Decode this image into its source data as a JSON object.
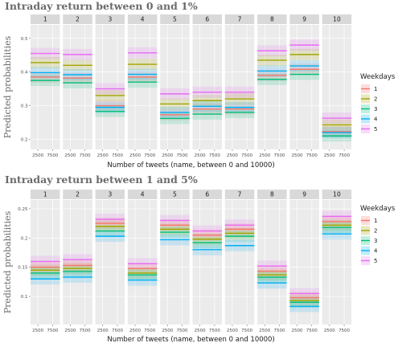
{
  "legend": {
    "title": "Weekdays",
    "entries": [
      "1",
      "2",
      "3",
      "4",
      "5"
    ],
    "colors": [
      "#F8766D",
      "#A3A500",
      "#00BF7D",
      "#00B0F6",
      "#E76BF3"
    ],
    "placement": "right"
  },
  "chart_data": [
    {
      "type": "line",
      "title": "Intraday return between 0 and 1%",
      "xlabel": "Number of tweets (name, between 0 and 10000)",
      "ylabel": "Predicted probabilities",
      "x_ticks": [
        2500,
        7500
      ],
      "xlim": [
        0,
        10000
      ],
      "y_ticks": [
        0.2,
        0.3,
        0.4,
        0.5
      ],
      "ylim": [
        0.17,
        0.54
      ],
      "grid": true,
      "panels": [
        "1",
        "2",
        "3",
        "4",
        "5",
        "6",
        "7",
        "8",
        "9",
        "10"
      ],
      "series": [
        {
          "name": "1",
          "values": [
            0.385,
            0.382,
            0.3,
            0.385,
            0.273,
            0.29,
            0.29,
            0.39,
            0.408,
            0.223
          ]
        },
        {
          "name": "2",
          "values": [
            0.428,
            0.42,
            0.33,
            0.423,
            0.305,
            0.315,
            0.32,
            0.435,
            0.452,
            0.243
          ]
        },
        {
          "name": "3",
          "values": [
            0.375,
            0.368,
            0.283,
            0.37,
            0.262,
            0.275,
            0.28,
            0.378,
            0.393,
            0.21
          ]
        },
        {
          "name": "4",
          "values": [
            0.398,
            0.392,
            0.295,
            0.393,
            0.28,
            0.298,
            0.295,
            0.403,
            0.418,
            0.22
          ]
        },
        {
          "name": "5",
          "values": [
            0.455,
            0.452,
            0.35,
            0.457,
            0.335,
            0.34,
            0.34,
            0.463,
            0.48,
            0.263
          ]
        }
      ]
    },
    {
      "type": "line",
      "title": "Intraday return between 1 and 5%",
      "xlabel": "Number of tweets (name, between 0 and 10000)",
      "ylabel": "Predicted probabilities",
      "x_ticks": [
        2500,
        7500
      ],
      "xlim": [
        0,
        10000
      ],
      "y_ticks": [
        0.1,
        0.15,
        0.2,
        0.25
      ],
      "ylim": [
        0.052,
        0.265
      ],
      "grid": true,
      "panels": [
        "1",
        "2",
        "3",
        "4",
        "5",
        "6",
        "7",
        "8",
        "9",
        "10"
      ],
      "series": [
        {
          "name": "1",
          "values": [
            0.15,
            0.153,
            0.225,
            0.148,
            0.222,
            0.205,
            0.215,
            0.143,
            0.098,
            0.228
          ]
        },
        {
          "name": "2",
          "values": [
            0.145,
            0.148,
            0.22,
            0.14,
            0.215,
            0.198,
            0.208,
            0.137,
            0.093,
            0.222
          ]
        },
        {
          "name": "3",
          "values": [
            0.14,
            0.143,
            0.212,
            0.137,
            0.21,
            0.192,
            0.203,
            0.133,
            0.09,
            0.218
          ]
        },
        {
          "name": "4",
          "values": [
            0.13,
            0.133,
            0.203,
            0.128,
            0.197,
            0.18,
            0.187,
            0.123,
            0.083,
            0.207
          ]
        },
        {
          "name": "5",
          "values": [
            0.16,
            0.163,
            0.232,
            0.156,
            0.23,
            0.212,
            0.222,
            0.152,
            0.105,
            0.237
          ]
        }
      ]
    }
  ]
}
